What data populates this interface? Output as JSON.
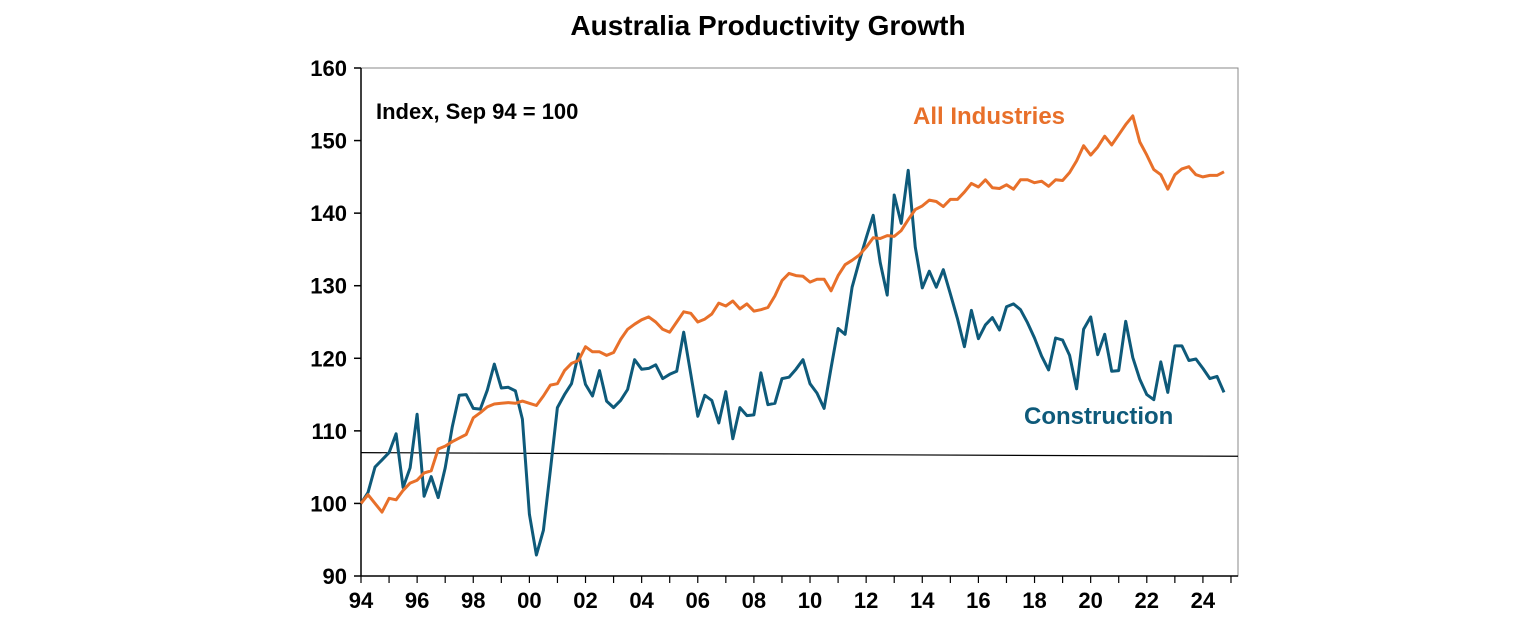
{
  "chart_data": {
    "type": "line",
    "title": "Australia Productivity Growth",
    "annotation": "Index, Sep 94 = 100",
    "xlabel": "",
    "ylabel": "",
    "ylim": [
      90,
      160
    ],
    "yticks": [
      90,
      100,
      110,
      120,
      130,
      140,
      150,
      160
    ],
    "xlim": [
      1994,
      2025.25
    ],
    "xticks": [
      "94",
      "96",
      "98",
      "00",
      "02",
      "04",
      "06",
      "08",
      "10",
      "12",
      "14",
      "16",
      "18",
      "20",
      "22",
      "24"
    ],
    "grid": false,
    "reference_line": {
      "from": [
        1994,
        107.0
      ],
      "to": [
        2025.25,
        106.5
      ]
    },
    "colors": {
      "all_industries": "#E8702A",
      "construction": "#0E5A7A",
      "axis": "#000000",
      "frame": "#888888"
    },
    "series": [
      {
        "name": "All Industries",
        "x_start": 1994.0,
        "x_step": 0.25,
        "values": [
          100.0,
          101.2,
          100.0,
          98.8,
          100.7,
          100.5,
          101.8,
          102.8,
          103.2,
          104.2,
          104.5,
          107.5,
          107.9,
          108.5,
          109.0,
          109.5,
          111.8,
          112.5,
          113.3,
          113.7,
          113.8,
          113.9,
          113.8,
          114.1,
          113.8,
          113.5,
          114.8,
          116.3,
          116.5,
          118.3,
          119.3,
          119.7,
          121.6,
          120.9,
          120.9,
          120.4,
          120.8,
          122.6,
          124.0,
          124.7,
          125.3,
          125.7,
          125.0,
          124.0,
          123.6,
          125.0,
          126.4,
          126.2,
          125.0,
          125.4,
          126.1,
          127.6,
          127.2,
          127.9,
          126.8,
          127.5,
          126.5,
          126.7,
          127.0,
          128.6,
          130.7,
          131.7,
          131.4,
          131.3,
          130.5,
          130.9,
          130.9,
          129.3,
          131.4,
          132.9,
          133.5,
          134.2,
          135.3,
          136.6,
          136.5,
          136.9,
          136.8,
          137.6,
          139.1,
          140.5,
          141.0,
          141.8,
          141.6,
          140.9,
          141.9,
          141.9,
          142.9,
          144.1,
          143.6,
          144.6,
          143.5,
          143.4,
          143.9,
          143.3,
          144.6,
          144.6,
          144.2,
          144.4,
          143.7,
          144.6,
          144.5,
          145.6,
          147.2,
          149.3,
          148.0,
          149.1,
          150.6,
          149.4,
          150.8,
          152.2,
          153.4,
          149.8,
          148.0,
          146.0,
          145.3,
          143.3,
          145.3,
          146.1,
          146.4,
          145.3,
          145.0,
          145.2,
          145.2,
          145.7
        ]
      },
      {
        "name": "Construction",
        "x_start": 1994.0,
        "x_step": 0.25,
        "values": [
          100.0,
          101.5,
          105.0,
          106.0,
          107.0,
          109.6,
          102.2,
          104.9,
          112.3,
          101.0,
          103.7,
          100.8,
          104.9,
          110.5,
          114.9,
          115.0,
          113.1,
          113.0,
          115.6,
          119.2,
          115.9,
          116.0,
          115.5,
          111.6,
          98.5,
          92.9,
          96.3,
          104.6,
          113.2,
          115.0,
          116.5,
          120.6,
          116.4,
          114.8,
          118.3,
          114.1,
          113.2,
          114.2,
          115.7,
          119.8,
          118.5,
          118.6,
          119.1,
          117.2,
          117.8,
          118.2,
          123.6,
          117.8,
          112.0,
          114.9,
          114.2,
          111.1,
          115.4,
          108.9,
          113.2,
          112.1,
          112.2,
          118.0,
          113.6,
          113.8,
          117.2,
          117.4,
          118.5,
          119.8,
          116.5,
          115.2,
          113.1,
          118.7,
          124.1,
          123.3,
          129.8,
          133.3,
          136.6,
          139.7,
          133.2,
          128.7,
          142.5,
          138.6,
          145.9,
          135.3,
          129.7,
          132.0,
          129.8,
          132.2,
          128.9,
          125.5,
          121.6,
          126.6,
          122.7,
          124.6,
          125.6,
          123.9,
          127.1,
          127.5,
          126.7,
          124.9,
          122.8,
          120.3,
          118.4,
          122.8,
          122.5,
          120.4,
          115.8,
          124.0,
          125.7,
          120.5,
          123.3,
          118.2,
          118.3,
          125.1,
          120.1,
          117.1,
          115.0,
          114.3,
          119.5,
          115.3,
          121.7,
          121.7,
          119.7,
          119.9,
          118.6,
          117.2,
          117.5,
          115.3
        ]
      }
    ]
  }
}
